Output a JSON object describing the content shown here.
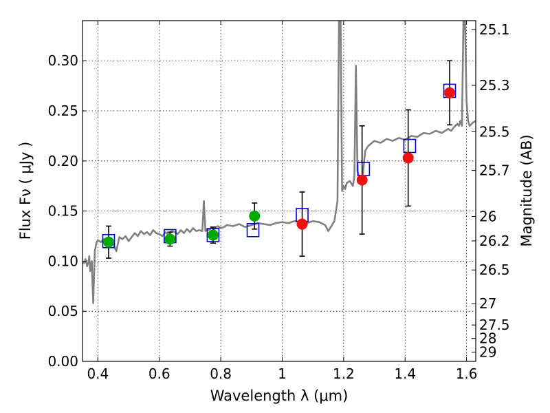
{
  "chart_data": {
    "type": "scatter",
    "xlabel": "Wavelength  λ (μm)",
    "ylabel": "Flux  Fν  ( μJy )",
    "y2label": "Magnitude (AB)",
    "xlim": [
      0.35,
      1.63
    ],
    "ylim": [
      0.0,
      0.34
    ],
    "x_ticks": [
      0.4,
      0.6,
      0.8,
      1.0,
      1.2,
      1.4,
      1.6
    ],
    "x_tick_labels": [
      "0.4",
      "0.6",
      "0.8",
      "1",
      "1.2",
      "1.4",
      "1.6"
    ],
    "y_ticks": [
      0.0,
      0.05,
      0.1,
      0.15,
      0.2,
      0.25,
      0.3
    ],
    "y_tick_labels": [
      "0.00",
      "0.05",
      "0.10",
      "0.15",
      "0.20",
      "0.25",
      "0.30"
    ],
    "mag_ticks": [
      "25.1",
      "25.3",
      "25.5",
      "25.7",
      "26",
      "26.2",
      "26.5",
      "27",
      "27.5",
      "28",
      "29"
    ],
    "grid": true,
    "colors": {
      "model": "#808080",
      "model_photometry": "#0000cc",
      "detections": "#00aa00",
      "nondetections": "#ee1111",
      "errorbars": "#000000"
    },
    "model_spectrum": {
      "x": [
        0.35,
        0.355,
        0.36,
        0.365,
        0.37,
        0.372,
        0.375,
        0.38,
        0.385,
        0.39,
        0.395,
        0.4,
        0.41,
        0.42,
        0.43,
        0.44,
        0.45,
        0.46,
        0.47,
        0.48,
        0.49,
        0.5,
        0.51,
        0.52,
        0.53,
        0.54,
        0.55,
        0.56,
        0.57,
        0.58,
        0.59,
        0.6,
        0.61,
        0.62,
        0.63,
        0.64,
        0.65,
        0.655,
        0.66,
        0.67,
        0.68,
        0.69,
        0.7,
        0.71,
        0.72,
        0.73,
        0.74,
        0.745,
        0.75,
        0.755,
        0.76,
        0.77,
        0.78,
        0.79,
        0.8,
        0.81,
        0.82,
        0.84,
        0.86,
        0.88,
        0.9,
        0.92,
        0.94,
        0.96,
        0.98,
        1.0,
        1.02,
        1.04,
        1.06,
        1.08,
        1.1,
        1.12,
        1.14,
        1.15,
        1.16,
        1.17,
        1.18,
        1.185,
        1.19,
        1.195,
        1.2,
        1.205,
        1.21,
        1.22,
        1.23,
        1.235,
        1.24,
        1.245,
        1.25,
        1.26,
        1.27,
        1.28,
        1.3,
        1.32,
        1.34,
        1.36,
        1.38,
        1.4,
        1.42,
        1.44,
        1.46,
        1.48,
        1.5,
        1.52,
        1.54,
        1.55,
        1.56,
        1.57,
        1.575,
        1.58,
        1.585,
        1.59,
        1.595,
        1.6,
        1.605,
        1.61,
        1.62,
        1.63
      ],
      "y": [
        0.1,
        0.098,
        0.102,
        0.095,
        0.1,
        0.105,
        0.09,
        0.1,
        0.058,
        0.11,
        0.118,
        0.121,
        0.119,
        0.122,
        0.121,
        0.12,
        0.117,
        0.11,
        0.124,
        0.122,
        0.125,
        0.12,
        0.124,
        0.128,
        0.125,
        0.13,
        0.127,
        0.129,
        0.126,
        0.131,
        0.128,
        0.127,
        0.125,
        0.129,
        0.126,
        0.13,
        0.129,
        0.128,
        0.127,
        0.131,
        0.128,
        0.132,
        0.129,
        0.133,
        0.13,
        0.131,
        0.13,
        0.16,
        0.13,
        0.132,
        0.131,
        0.133,
        0.132,
        0.135,
        0.133,
        0.134,
        0.136,
        0.135,
        0.137,
        0.134,
        0.136,
        0.138,
        0.137,
        0.136,
        0.138,
        0.139,
        0.138,
        0.14,
        0.139,
        0.138,
        0.14,
        0.139,
        0.136,
        0.13,
        0.135,
        0.14,
        0.16,
        0.34,
        0.34,
        0.17,
        0.175,
        0.172,
        0.178,
        0.18,
        0.175,
        0.185,
        0.295,
        0.19,
        0.185,
        0.178,
        0.21,
        0.215,
        0.22,
        0.218,
        0.222,
        0.22,
        0.223,
        0.221,
        0.225,
        0.224,
        0.228,
        0.227,
        0.23,
        0.228,
        0.232,
        0.23,
        0.234,
        0.237,
        0.235,
        0.24,
        0.235,
        0.34,
        0.34,
        0.26,
        0.24,
        0.235,
        0.238,
        0.24
      ]
    },
    "series": [
      {
        "marker": "open-square",
        "color": "#0000cc",
        "x": [
          0.435,
          0.635,
          0.775,
          0.905,
          1.065,
          1.265,
          1.415,
          1.545
        ],
        "y": [
          0.12,
          0.125,
          0.126,
          0.131,
          0.146,
          0.192,
          0.215,
          0.27
        ]
      },
      {
        "marker": "filled-circle",
        "color": "#00aa00",
        "x": [
          0.435,
          0.635,
          0.775,
          0.91
        ],
        "y": [
          0.119,
          0.122,
          0.126,
          0.145
        ],
        "yerr": [
          0.016,
          0.007,
          0.008,
          0.013
        ]
      },
      {
        "marker": "filled-circle",
        "color": "#ee1111",
        "x": [
          1.065,
          1.26,
          1.41,
          1.545
        ],
        "y": [
          0.137,
          0.181,
          0.203,
          0.268
        ],
        "yerr": [
          0.032,
          0.054,
          0.048,
          0.032
        ]
      }
    ]
  }
}
